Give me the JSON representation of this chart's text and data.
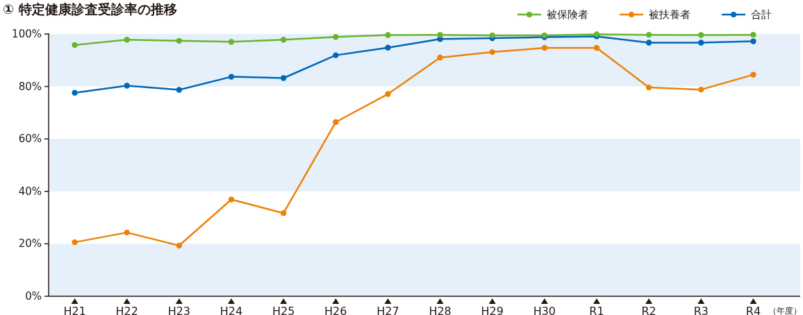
{
  "chart_data": {
    "type": "line",
    "title": "① 特定健康診査受診率の推移",
    "xlabel": "（年度）",
    "categories": [
      "H21",
      "H22",
      "H23",
      "H24",
      "H25",
      "H26",
      "H27",
      "H28",
      "H29",
      "H30",
      "R1",
      "R2",
      "R3",
      "R4"
    ],
    "series": [
      {
        "name": "被保険者",
        "color": "#6ab42d",
        "values": [
          95.8,
          97.8,
          97.4,
          97.0,
          97.8,
          98.9,
          99.6,
          99.7,
          99.5,
          99.5,
          99.9,
          99.7,
          99.6,
          99.7
        ]
      },
      {
        "name": "被扶養者",
        "color": "#ee8208",
        "values": [
          20.6,
          24.3,
          19.3,
          36.9,
          31.7,
          66.4,
          77.1,
          91.0,
          93.1,
          94.7,
          94.7,
          79.6,
          78.8,
          84.5
        ]
      },
      {
        "name": "合計",
        "color": "#0068b7",
        "values": [
          77.6,
          80.3,
          78.7,
          83.7,
          83.2,
          91.9,
          94.8,
          98.1,
          98.4,
          98.8,
          99.1,
          96.7,
          96.7,
          97.2
        ]
      }
    ],
    "ylim": [
      0,
      100
    ],
    "yticks": [
      {
        "value": 0,
        "label": "0%"
      },
      {
        "value": 20,
        "label": "20%"
      },
      {
        "value": 40,
        "label": "40%"
      },
      {
        "value": 60,
        "label": "60%"
      },
      {
        "value": 80,
        "label": "80%"
      },
      {
        "value": 100,
        "label": "100%"
      }
    ],
    "bands": [
      {
        "axis": "y",
        "from": 0,
        "to": 20,
        "color": "#e5f0fa"
      },
      {
        "axis": "y",
        "from": 40,
        "to": 60,
        "color": "#e5f0fa"
      },
      {
        "axis": "y",
        "from": 80,
        "to": 100,
        "color": "#e5f0fa"
      }
    ],
    "grid": false,
    "legend": "top right",
    "marker": "circle",
    "line_style": "solid"
  }
}
